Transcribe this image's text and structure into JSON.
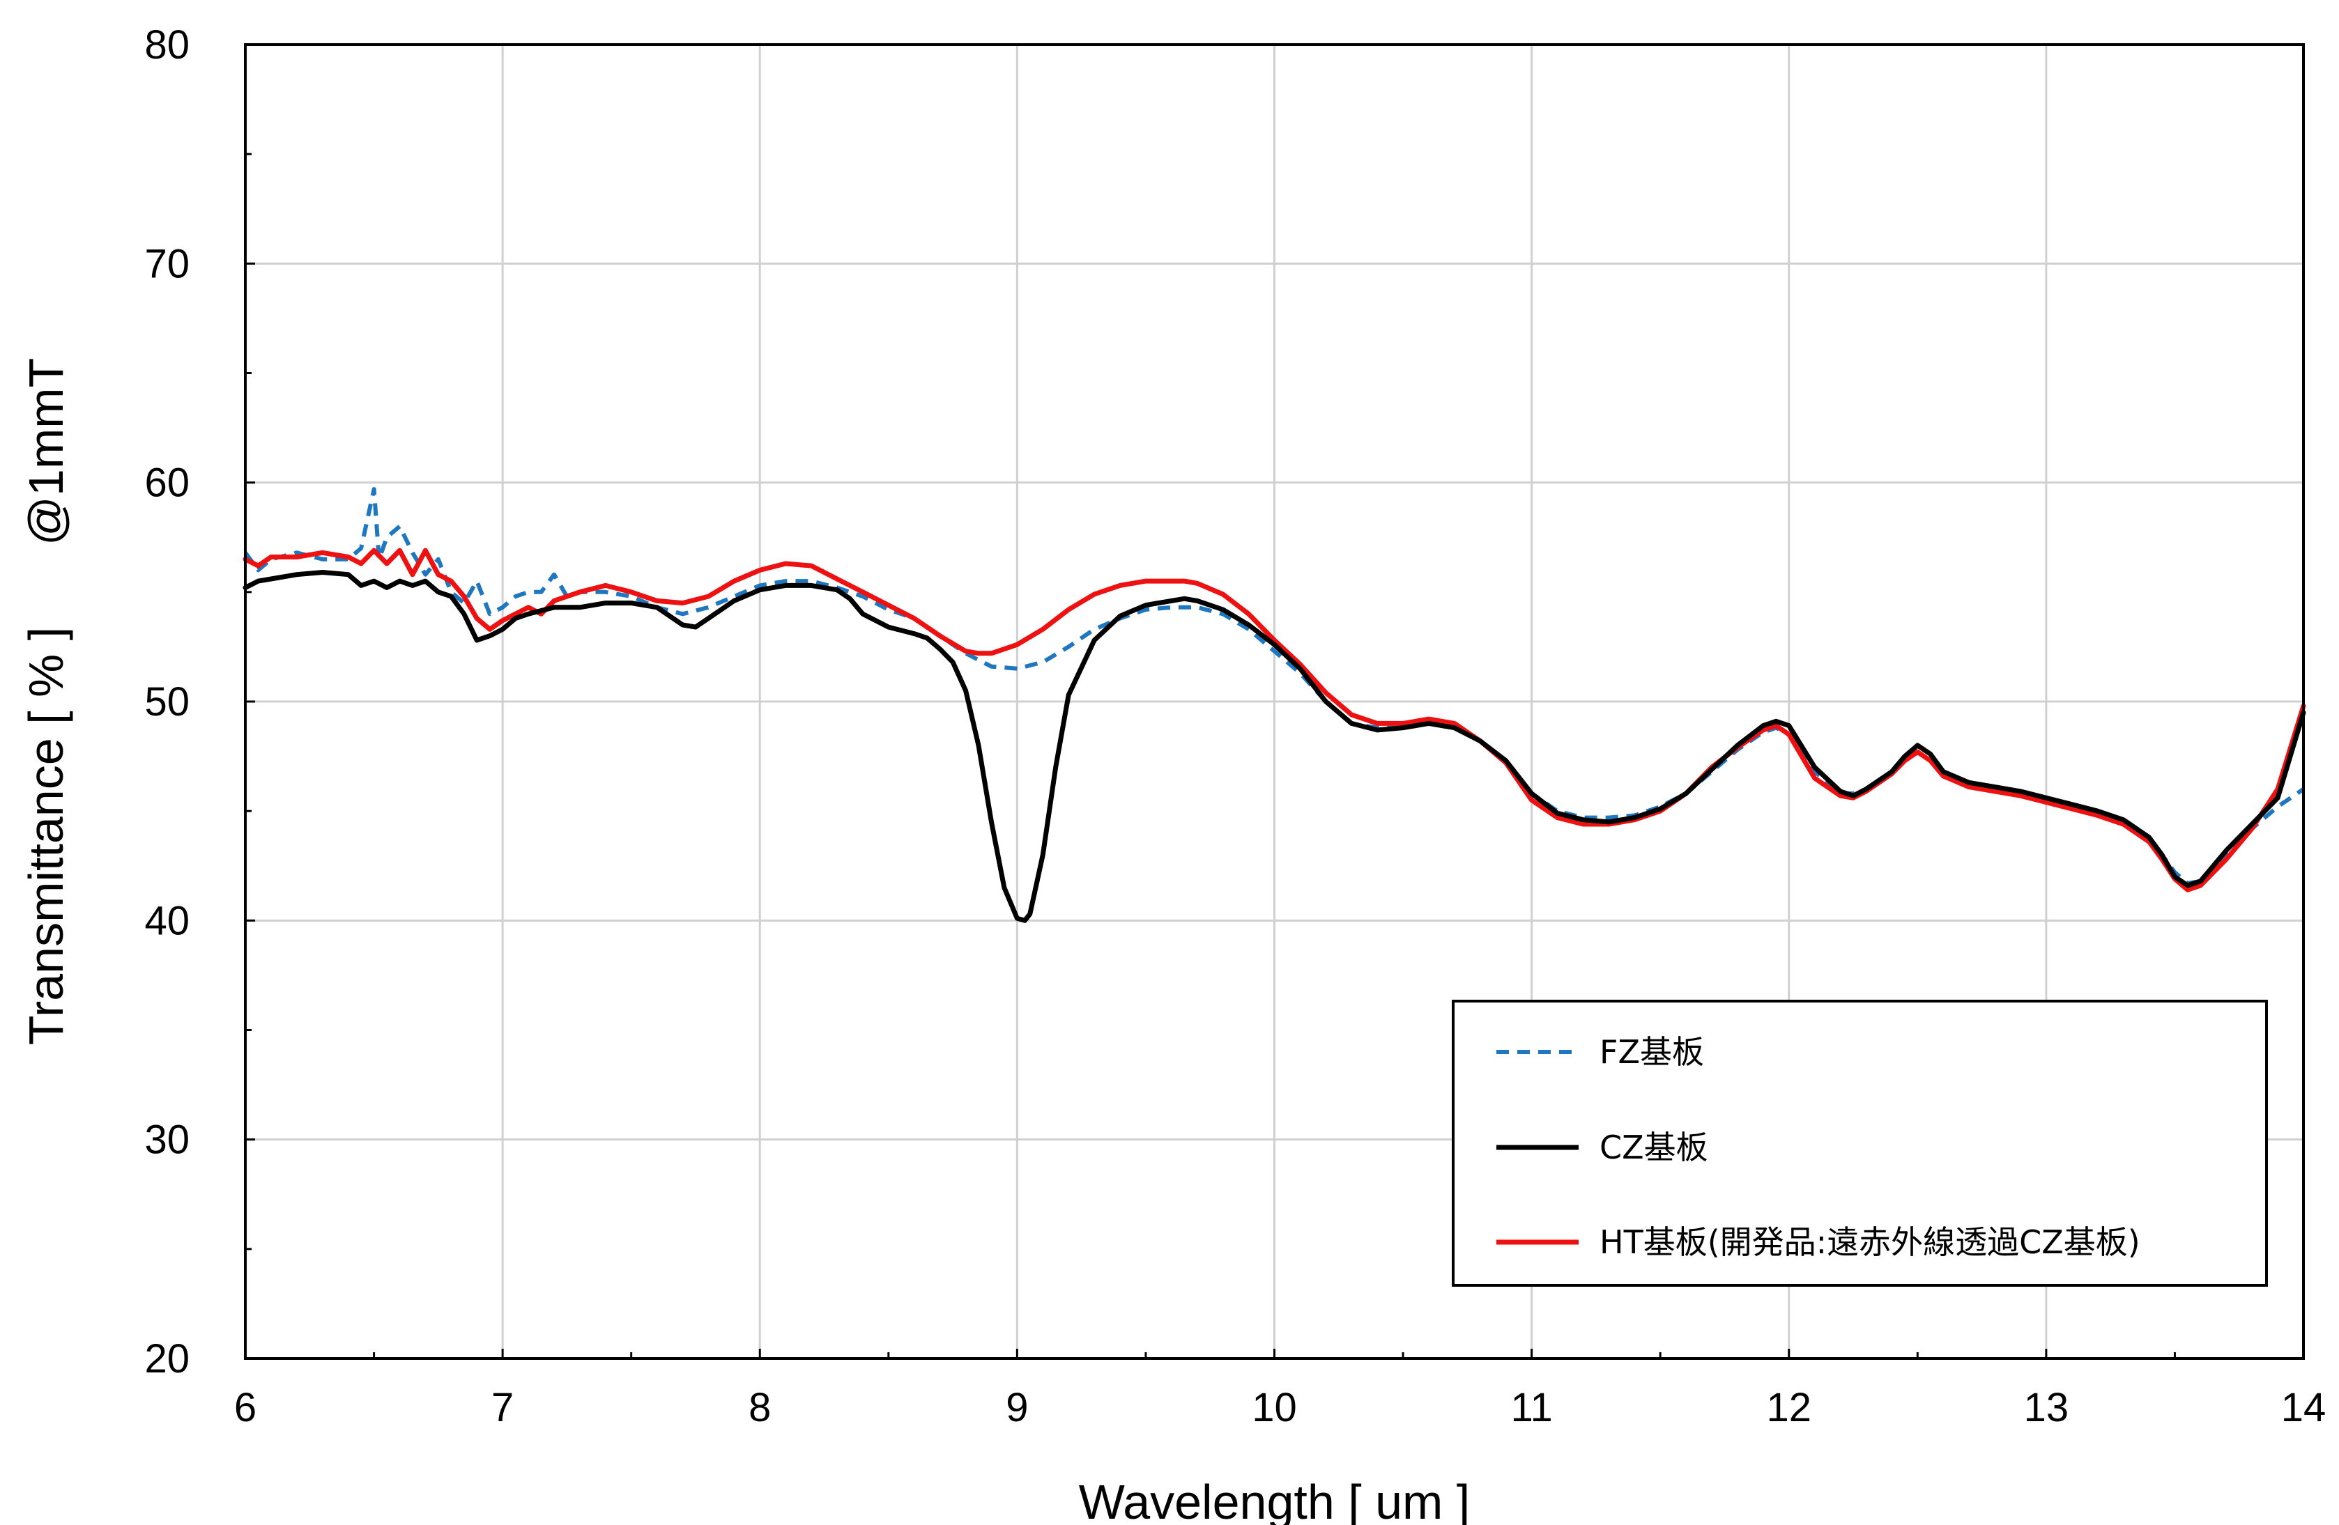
{
  "chart_data": {
    "type": "line",
    "xlabel": "Wavelength [ um ]",
    "ylabel": "Transmittance [ % ]      @1mmT",
    "xlim": [
      6,
      14
    ],
    "ylim": [
      20,
      80
    ],
    "xticks": [
      6,
      7,
      8,
      9,
      10,
      11,
      12,
      13,
      14
    ],
    "yticks": [
      20,
      30,
      40,
      50,
      60,
      70,
      80
    ],
    "grid": true,
    "legend_position": "lower-right",
    "series": [
      {
        "name": "FZ基板",
        "color": "#1f77c0",
        "dash": "dashed",
        "x": [
          6.0,
          6.05,
          6.1,
          6.2,
          6.3,
          6.4,
          6.45,
          6.5,
          6.52,
          6.55,
          6.6,
          6.65,
          6.7,
          6.75,
          6.8,
          6.85,
          6.9,
          6.95,
          7.0,
          7.05,
          7.1,
          7.15,
          7.2,
          7.25,
          7.3,
          7.4,
          7.5,
          7.6,
          7.7,
          7.8,
          7.9,
          8.0,
          8.1,
          8.2,
          8.3,
          8.4,
          8.5,
          8.6,
          8.7,
          8.8,
          8.9,
          9.0,
          9.1,
          9.2,
          9.3,
          9.4,
          9.5,
          9.6,
          9.7,
          9.8,
          9.9,
          10.0,
          10.1,
          10.2,
          10.3,
          10.4,
          10.5,
          10.6,
          10.7,
          10.8,
          10.9,
          11.0,
          11.1,
          11.2,
          11.3,
          11.4,
          11.5,
          11.6,
          11.7,
          11.8,
          11.9,
          11.95,
          12.0,
          12.1,
          12.2,
          12.25,
          12.3,
          12.4,
          12.45,
          12.5,
          12.55,
          12.6,
          12.7,
          12.8,
          12.9,
          13.0,
          13.1,
          13.2,
          13.3,
          13.4,
          13.45,
          13.5,
          13.55,
          13.6,
          13.7,
          13.8,
          13.9,
          14.0
        ],
        "values": [
          56.8,
          56.0,
          56.5,
          56.8,
          56.5,
          56.5,
          57.0,
          59.7,
          56.5,
          57.5,
          58.0,
          56.8,
          55.8,
          56.5,
          55.0,
          54.5,
          55.5,
          54.0,
          54.3,
          54.8,
          55.0,
          55.0,
          55.8,
          54.8,
          55.0,
          55.0,
          54.8,
          54.3,
          54.0,
          54.3,
          54.8,
          55.3,
          55.5,
          55.5,
          55.2,
          54.8,
          54.2,
          53.8,
          53.0,
          52.2,
          51.6,
          51.5,
          51.8,
          52.5,
          53.3,
          53.8,
          54.2,
          54.3,
          54.3,
          54.0,
          53.3,
          52.3,
          51.3,
          50.0,
          49.0,
          48.8,
          48.8,
          49.0,
          48.8,
          48.2,
          47.2,
          45.8,
          45.0,
          44.7,
          44.7,
          44.8,
          45.2,
          45.8,
          46.8,
          47.8,
          48.6,
          48.8,
          48.5,
          46.8,
          45.8,
          45.8,
          46.0,
          46.8,
          47.3,
          47.7,
          47.3,
          46.8,
          46.3,
          46.1,
          45.9,
          45.6,
          45.3,
          45.0,
          44.6,
          43.8,
          43.0,
          42.2,
          41.7,
          41.8,
          43.0,
          44.2,
          45.2,
          46.0
        ]
      },
      {
        "name": "CZ基板",
        "color": "#000000",
        "dash": "solid",
        "x": [
          6.0,
          6.05,
          6.1,
          6.2,
          6.3,
          6.4,
          6.45,
          6.5,
          6.55,
          6.6,
          6.65,
          6.7,
          6.75,
          6.8,
          6.85,
          6.9,
          6.95,
          7.0,
          7.05,
          7.1,
          7.2,
          7.3,
          7.4,
          7.5,
          7.6,
          7.7,
          7.75,
          7.8,
          7.9,
          8.0,
          8.1,
          8.2,
          8.3,
          8.35,
          8.4,
          8.5,
          8.6,
          8.65,
          8.7,
          8.75,
          8.8,
          8.85,
          8.9,
          8.95,
          9.0,
          9.03,
          9.05,
          9.1,
          9.15,
          9.2,
          9.3,
          9.4,
          9.5,
          9.6,
          9.65,
          9.7,
          9.8,
          9.9,
          10.0,
          10.1,
          10.2,
          10.3,
          10.4,
          10.5,
          10.6,
          10.7,
          10.8,
          10.9,
          11.0,
          11.1,
          11.2,
          11.3,
          11.4,
          11.5,
          11.6,
          11.7,
          11.8,
          11.9,
          11.95,
          12.0,
          12.1,
          12.2,
          12.25,
          12.3,
          12.4,
          12.45,
          12.5,
          12.55,
          12.6,
          12.7,
          12.8,
          12.9,
          13.0,
          13.1,
          13.2,
          13.3,
          13.4,
          13.45,
          13.5,
          13.55,
          13.6,
          13.7,
          13.8,
          13.9,
          14.0
        ],
        "values": [
          55.2,
          55.5,
          55.6,
          55.8,
          55.9,
          55.8,
          55.3,
          55.5,
          55.2,
          55.5,
          55.3,
          55.5,
          55.0,
          54.8,
          54.0,
          52.8,
          53.0,
          53.3,
          53.8,
          54.0,
          54.3,
          54.3,
          54.5,
          54.5,
          54.3,
          53.5,
          53.4,
          53.8,
          54.6,
          55.1,
          55.3,
          55.3,
          55.1,
          54.7,
          54.0,
          53.4,
          53.1,
          52.9,
          52.4,
          51.8,
          50.5,
          48.0,
          44.5,
          41.5,
          40.1,
          40.0,
          40.3,
          43.0,
          47.0,
          50.3,
          52.8,
          53.9,
          54.4,
          54.6,
          54.7,
          54.6,
          54.2,
          53.5,
          52.6,
          51.5,
          50.0,
          49.0,
          48.7,
          48.8,
          49.0,
          48.8,
          48.2,
          47.3,
          45.8,
          44.9,
          44.6,
          44.5,
          44.7,
          45.1,
          45.8,
          46.9,
          48.0,
          48.9,
          49.1,
          48.9,
          47.0,
          45.9,
          45.7,
          46.0,
          46.8,
          47.5,
          48.0,
          47.6,
          46.8,
          46.3,
          46.1,
          45.9,
          45.6,
          45.3,
          45.0,
          44.6,
          43.8,
          43.0,
          42.0,
          41.6,
          41.8,
          43.2,
          44.4,
          45.6,
          49.5
        ]
      },
      {
        "name": "HT基板(開発品:遠赤外線透過CZ基板)",
        "color": "#ee1111",
        "dash": "solid",
        "x": [
          6.0,
          6.05,
          6.1,
          6.2,
          6.3,
          6.4,
          6.45,
          6.5,
          6.55,
          6.6,
          6.65,
          6.7,
          6.75,
          6.8,
          6.85,
          6.9,
          6.95,
          7.0,
          7.05,
          7.1,
          7.15,
          7.2,
          7.3,
          7.4,
          7.5,
          7.6,
          7.7,
          7.8,
          7.9,
          8.0,
          8.1,
          8.2,
          8.3,
          8.4,
          8.5,
          8.6,
          8.7,
          8.8,
          8.85,
          8.9,
          9.0,
          9.1,
          9.2,
          9.3,
          9.4,
          9.5,
          9.6,
          9.65,
          9.7,
          9.8,
          9.9,
          10.0,
          10.1,
          10.2,
          10.3,
          10.4,
          10.5,
          10.6,
          10.7,
          10.8,
          10.9,
          11.0,
          11.1,
          11.2,
          11.3,
          11.4,
          11.5,
          11.6,
          11.7,
          11.8,
          11.9,
          11.95,
          12.0,
          12.1,
          12.2,
          12.25,
          12.3,
          12.4,
          12.45,
          12.5,
          12.55,
          12.6,
          12.7,
          12.8,
          12.9,
          13.0,
          13.1,
          13.2,
          13.3,
          13.4,
          13.45,
          13.5,
          13.55,
          13.6,
          13.7,
          13.8,
          13.9,
          14.0
        ],
        "values": [
          56.5,
          56.2,
          56.6,
          56.6,
          56.8,
          56.6,
          56.3,
          56.9,
          56.3,
          56.9,
          55.8,
          56.9,
          55.8,
          55.5,
          54.8,
          53.8,
          53.3,
          53.7,
          54.0,
          54.3,
          54.0,
          54.6,
          55.0,
          55.3,
          55.0,
          54.6,
          54.5,
          54.8,
          55.5,
          56.0,
          56.3,
          56.2,
          55.6,
          55.0,
          54.4,
          53.8,
          53.0,
          52.3,
          52.2,
          52.2,
          52.6,
          53.3,
          54.2,
          54.9,
          55.3,
          55.5,
          55.5,
          55.5,
          55.4,
          54.9,
          54.0,
          52.8,
          51.7,
          50.4,
          49.4,
          49.0,
          49.0,
          49.2,
          49.0,
          48.2,
          47.2,
          45.5,
          44.7,
          44.4,
          44.4,
          44.6,
          45.0,
          45.8,
          47.0,
          47.9,
          48.7,
          48.9,
          48.5,
          46.5,
          45.7,
          45.6,
          45.9,
          46.7,
          47.3,
          47.7,
          47.3,
          46.6,
          46.1,
          45.9,
          45.7,
          45.4,
          45.1,
          44.8,
          44.4,
          43.6,
          42.8,
          41.9,
          41.4,
          41.6,
          42.8,
          44.2,
          46.0,
          49.8
        ]
      }
    ]
  }
}
